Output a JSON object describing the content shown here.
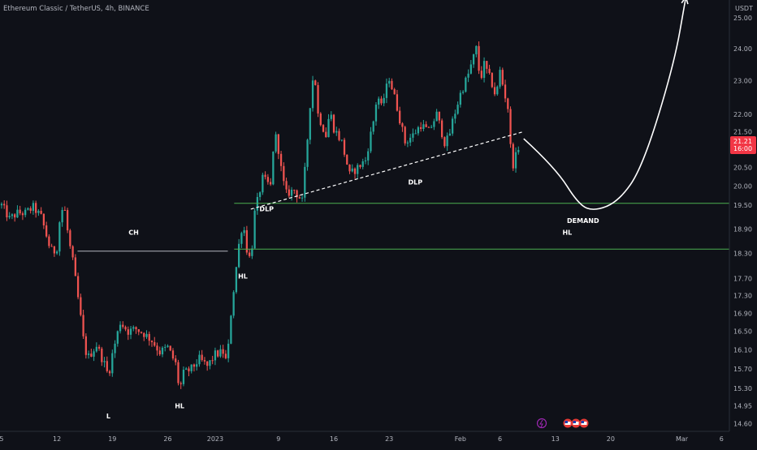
{
  "header": {
    "symbol_line": "Ethereum Classic / TetherUS, 4h, BINANCE"
  },
  "chart_data": {
    "type": "candlestick",
    "title": "Ethereum Classic / TetherUS, 4h, BINANCE",
    "y_unit": "USDT",
    "y_scale": "log",
    "ylim": [
      14.45,
      25.6
    ],
    "x_unit": "trading day index (Dec 5 = 0)",
    "xlim": [
      -0.2,
      92
    ],
    "x_ticks": [
      {
        "label": "5",
        "x": 0
      },
      {
        "label": "12",
        "x": 7
      },
      {
        "label": "19",
        "x": 14
      },
      {
        "label": "26",
        "x": 21
      },
      {
        "label": "2023",
        "x": 27
      },
      {
        "label": "9",
        "x": 35
      },
      {
        "label": "16",
        "x": 42
      },
      {
        "label": "23",
        "x": 49
      },
      {
        "label": "Feb",
        "x": 58
      },
      {
        "label": "6",
        "x": 63
      },
      {
        "label": "13",
        "x": 70
      },
      {
        "label": "20",
        "x": 77
      },
      {
        "label": "Mar",
        "x": 86
      },
      {
        "label": "6",
        "x": 91
      }
    ],
    "y_ticks": [
      "25.00",
      "24.00",
      "23.00",
      "22.00",
      "21.50",
      "20.50",
      "20.00",
      "19.50",
      "18.90",
      "18.30",
      "17.70",
      "17.30",
      "16.90",
      "16.50",
      "16.10",
      "15.70",
      "15.30",
      "14.95",
      "14.60"
    ],
    "last_price": "21.21",
    "countdown": "16:00",
    "price_path": [
      [
        0,
        19.5
      ],
      [
        1,
        19.15
      ],
      [
        2,
        19.3
      ],
      [
        3,
        19.3
      ],
      [
        4,
        19.45
      ],
      [
        5,
        19.2
      ],
      [
        6,
        18.5
      ],
      [
        6.5,
        18.3
      ],
      [
        7,
        18.45
      ],
      [
        7.5,
        19.4
      ],
      [
        8,
        19.35
      ],
      [
        8.5,
        18.6
      ],
      [
        9,
        18.1
      ],
      [
        10,
        16.8
      ],
      [
        10.5,
        16.1
      ],
      [
        11,
        15.95
      ],
      [
        12,
        16.2
      ],
      [
        13,
        15.8
      ],
      [
        13.5,
        15.55
      ],
      [
        14,
        16
      ],
      [
        15,
        16.7
      ],
      [
        16,
        16.5
      ],
      [
        17,
        16.55
      ],
      [
        18,
        16.45
      ],
      [
        19,
        16.3
      ],
      [
        20,
        16.05
      ],
      [
        21,
        16.15
      ],
      [
        22,
        15.8
      ],
      [
        22.5,
        15.25
      ],
      [
        23,
        15.6
      ],
      [
        24,
        15.7
      ],
      [
        25,
        15.9
      ],
      [
        26,
        15.75
      ],
      [
        27,
        16
      ],
      [
        28,
        16.05
      ],
      [
        28.5,
        15.8
      ],
      [
        29,
        16.9
      ],
      [
        30,
        18.5
      ],
      [
        30.5,
        19.1
      ],
      [
        31,
        18.4
      ],
      [
        31.5,
        18.1
      ],
      [
        32,
        19.3
      ],
      [
        33,
        20.2
      ],
      [
        34,
        20
      ],
      [
        34.5,
        21.5
      ],
      [
        35,
        21
      ],
      [
        35.5,
        20.2
      ],
      [
        36,
        19.8
      ],
      [
        37,
        19.9
      ],
      [
        38,
        19.6
      ],
      [
        38.5,
        20.8
      ],
      [
        39,
        22.3
      ],
      [
        39.5,
        23.4
      ],
      [
        40,
        22
      ],
      [
        41,
        21.4
      ],
      [
        41.5,
        22.1
      ],
      [
        42,
        21.6
      ],
      [
        43,
        21.2
      ],
      [
        44,
        20.3
      ],
      [
        45,
        20.5
      ],
      [
        46,
        20.7
      ],
      [
        47,
        21.8
      ],
      [
        47.5,
        22.6
      ],
      [
        48,
        22.2
      ],
      [
        49,
        23.1
      ],
      [
        50,
        22.2
      ],
      [
        51,
        21.2
      ],
      [
        52,
        21.4
      ],
      [
        53,
        21.7
      ],
      [
        54,
        21.5
      ],
      [
        55,
        22
      ],
      [
        56,
        21.2
      ],
      [
        56.5,
        21.3
      ],
      [
        57,
        21.8
      ],
      [
        58,
        22.6
      ],
      [
        59,
        23.2
      ],
      [
        60,
        24
      ],
      [
        60.5,
        23
      ],
      [
        61,
        23.5
      ],
      [
        62,
        22.9
      ],
      [
        62.5,
        22.5
      ],
      [
        63,
        23.3
      ],
      [
        63.5,
        22.7
      ],
      [
        64,
        22.2
      ],
      [
        64.5,
        20.5
      ],
      [
        65,
        20.8
      ],
      [
        65.5,
        21.2
      ]
    ],
    "annotations": [
      {
        "label": "CH",
        "x": 16.7,
        "y": 18.75
      },
      {
        "label": "L",
        "x": 13.5,
        "y": 14.7
      },
      {
        "label": "HL",
        "x": 22.5,
        "y": 14.9
      },
      {
        "label": "HL",
        "x": 30.5,
        "y": 17.7
      },
      {
        "label": "DLP",
        "x": 33.5,
        "y": 19.35
      },
      {
        "label": "DLP",
        "x": 52.3,
        "y": 20.05
      },
      {
        "label": "DEMAND",
        "x": 73.5,
        "y": 19.05
      },
      {
        "label": "HL",
        "x": 71.5,
        "y": 18.75
      }
    ],
    "lines": {
      "ch_level": {
        "x1": 9.6,
        "x2": 28.6,
        "y": 18.35,
        "color": "#b2b5be"
      },
      "demand_top": {
        "x1": 29.4,
        "x2": 92,
        "y": 19.55,
        "color": "#4caf50"
      },
      "demand_bottom": {
        "x1": 29.4,
        "x2": 92,
        "y": 18.4,
        "color": "#4caf50"
      },
      "trendline": {
        "x1": 31.5,
        "y1": 19.4,
        "x2": 66,
        "y2": 21.5,
        "color": "#ffffff"
      },
      "projection": {
        "points": [
          [
            66,
            21.3
          ],
          [
            70,
            20.5
          ],
          [
            73,
            19.5
          ],
          [
            75,
            19.35
          ],
          [
            78,
            19.6
          ],
          [
            81,
            20.5
          ],
          [
            85,
            23.5
          ],
          [
            86.5,
            25.7
          ]
        ],
        "color": "#ffffff"
      }
    },
    "colors": {
      "up": "#26a69a",
      "down": "#ef5350",
      "background": "#0f1118",
      "label_bg": "#f23645"
    }
  }
}
